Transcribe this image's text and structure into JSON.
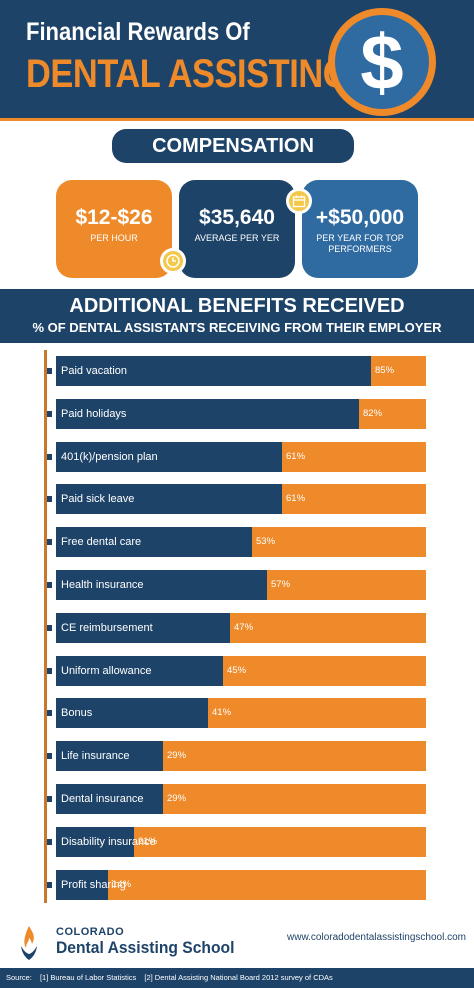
{
  "header": {
    "title_line1": "Financial Rewards Of",
    "title_line2": "DENTAL ASSISTING",
    "icon": "dollar-sign-icon",
    "dollar_glyph": "$"
  },
  "compensation": {
    "heading": "COMPENSATION",
    "cards": [
      {
        "value": "$12-$26",
        "label": "PER HOUR",
        "icon": "clock-icon"
      },
      {
        "value": "$35,640",
        "label": "AVERAGE PER YER",
        "icon": "calendar-icon"
      },
      {
        "value": "+$50,000",
        "label": "PER YEAR FOR TOP PERFORMERS"
      }
    ]
  },
  "benefits": {
    "title": "ADDITIONAL BENEFITS RECEIVED",
    "subtitle": "% OF DENTAL ASSISTANTS RECEIVING FROM THEIR EMPLOYER"
  },
  "chart_data": {
    "type": "bar",
    "orientation": "horizontal",
    "categories": [
      "Paid vacation",
      "Paid holidays",
      "401(k)/pension plan",
      "Paid sick leave",
      "Free dental care",
      "Health insurance",
      "CE reimbursement",
      "Uniform allowance",
      "Bonus",
      "Life insurance",
      "Dental insurance",
      "Disability insurance",
      "Profit sharing"
    ],
    "values": [
      85,
      82,
      61,
      61,
      53,
      57,
      47,
      45,
      41,
      29,
      29,
      21,
      14
    ],
    "value_labels": [
      "85%",
      "82%",
      "61%",
      "61%",
      "53%",
      "57%",
      "47%",
      "45%",
      "41%",
      "29%",
      "29%",
      "21%",
      "14%"
    ],
    "xlim": [
      0,
      100
    ],
    "colors": {
      "fill": "#1e4368",
      "remainder": "#ee8a2a"
    }
  },
  "footer": {
    "school_line1": "COLORADO",
    "school_line2": "Dental Assisting School",
    "logo_icon": "flame-torch-icon",
    "website": "www.coloradodentalassistingschool.com",
    "source_label": "Source:",
    "source1": "[1] Bureau of Labor Statistics",
    "source2": "[2] Dental Assisting National Board 2012 survey of CDAs"
  },
  "colors": {
    "navy": "#1e4368",
    "orange": "#ee8a2a",
    "blue": "#2f6aa1",
    "gold": "#f4c84b"
  }
}
